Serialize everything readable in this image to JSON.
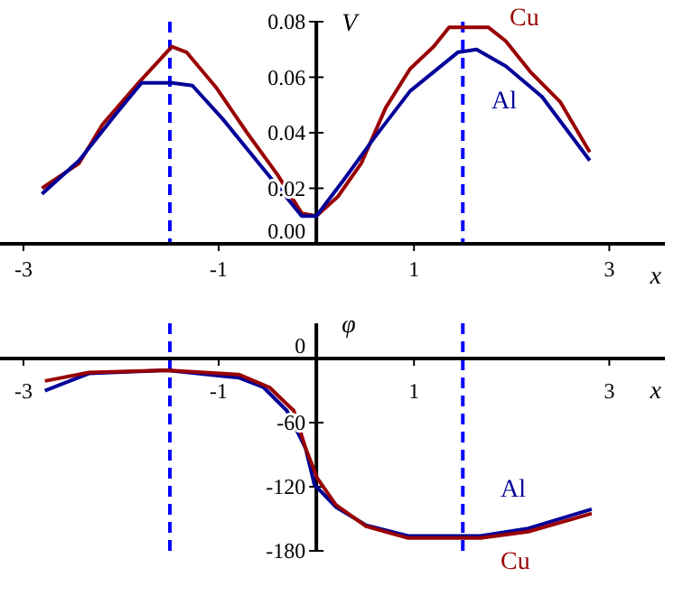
{
  "chart_data": [
    {
      "type": "line",
      "xlabel": "x",
      "ylabel": "V",
      "xlim": [
        -3.24,
        3.57
      ],
      "ylim": [
        0,
        0.08
      ],
      "xticks": [
        -3,
        -1,
        1,
        3
      ],
      "yticks": [
        {
          "value": 0,
          "label": "0.00"
        },
        0.02,
        0.04,
        0.06,
        0.08
      ],
      "grid": false,
      "marker": "none",
      "line_style": "solid",
      "ref_lines": [
        {
          "axis": "x",
          "value": -1.5,
          "color": "#0000ff",
          "line_style": "dashed"
        },
        {
          "axis": "x",
          "value": 1.5,
          "color": "#0000ff",
          "line_style": "dashed"
        }
      ],
      "series": [
        {
          "name": "Cu",
          "color": "#990000",
          "x": [
            -2.81,
            -2.43,
            -2.19,
            -1.82,
            -1.48,
            -1.33,
            -1.02,
            -0.71,
            -0.4,
            -0.15,
            0,
            0.22,
            0.46,
            0.71,
            0.96,
            1.2,
            1.36,
            1.76,
            1.94,
            2.19,
            2.5,
            2.8
          ],
          "values": [
            0.02,
            0.029,
            0.043,
            0.058,
            0.071,
            0.069,
            0.056,
            0.04,
            0.025,
            0.011,
            0.01,
            0.017,
            0.029,
            0.049,
            0.063,
            0.071,
            0.078,
            0.078,
            0.073,
            0.062,
            0.051,
            0.033
          ]
        },
        {
          "name": "Al",
          "color": "#000099",
          "x": [
            -2.81,
            -2.43,
            -2.07,
            -1.79,
            -1.48,
            -1.27,
            -0.96,
            -0.59,
            -0.15,
            0,
            0.28,
            0.59,
            0.96,
            1.45,
            1.64,
            1.94,
            2.31,
            2.8
          ],
          "values": [
            0.018,
            0.03,
            0.046,
            0.058,
            0.058,
            0.057,
            0.045,
            0.029,
            0.01,
            0.01,
            0.023,
            0.038,
            0.055,
            0.069,
            0.07,
            0.064,
            0.053,
            0.03
          ]
        }
      ]
    },
    {
      "type": "line",
      "xlabel": "x",
      "ylabel": "φ",
      "xlim": [
        -3.24,
        3.57
      ],
      "ylim": [
        -180,
        33
      ],
      "xticks": [
        -3,
        -1,
        1,
        3
      ],
      "yticks": [
        0,
        -60,
        -120,
        -180
      ],
      "grid": false,
      "marker": "none",
      "line_style": "solid",
      "ref_lines": [
        {
          "axis": "x",
          "value": -1.5,
          "color": "#0000ff",
          "line_style": "dashed"
        },
        {
          "axis": "x",
          "value": 1.5,
          "color": "#0000ff",
          "line_style": "dashed"
        }
      ],
      "series": [
        {
          "name": "Al",
          "color": "#000099",
          "x": [
            -2.78,
            -2.33,
            -1.53,
            -0.79,
            -0.54,
            -0.3,
            -0.11,
            -0.02,
            0.2,
            0.51,
            0.94,
            1.68,
            2.17,
            2.82
          ],
          "values": [
            -30,
            -14,
            -11,
            -18,
            -27,
            -49,
            -84,
            -118,
            -139,
            -156,
            -166,
            -166,
            -159,
            -141
          ]
        },
        {
          "name": "Cu",
          "color": "#990000",
          "x": [
            -2.78,
            -2.33,
            -1.53,
            -0.79,
            -0.48,
            -0.23,
            -0.11,
            0.01,
            0.2,
            0.51,
            0.94,
            1.68,
            2.17,
            2.82
          ],
          "values": [
            -21,
            -13,
            -11,
            -15,
            -27,
            -49,
            -84,
            -112,
            -137,
            -157,
            -168,
            -168,
            -162,
            -145
          ]
        }
      ]
    }
  ]
}
